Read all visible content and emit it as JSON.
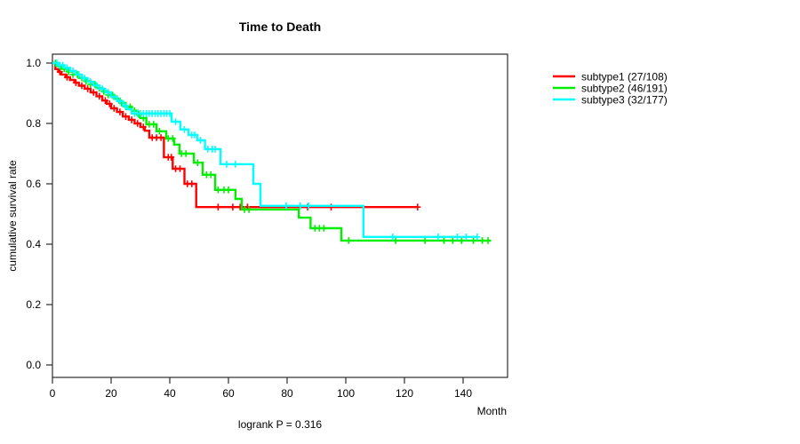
{
  "chart_data": {
    "type": "line",
    "subtype": "kaplan-meier-step",
    "title": "Time to Death",
    "xlabel": "Month",
    "ylabel": "cumulative survival rate",
    "annotation": "logrank P = 0.316",
    "legend_position": "right-outside",
    "grid": false,
    "xlim": [
      0,
      155
    ],
    "ylim": [
      0.0,
      1.03
    ],
    "xticks": [
      0,
      20,
      40,
      60,
      80,
      100,
      120,
      140
    ],
    "ytick_labels": [
      "0.0",
      "0.2",
      "0.4",
      "0.6",
      "0.8",
      "1.0"
    ],
    "series": [
      {
        "name": "subtype1 (27/108)",
        "color": "#ff0000",
        "end_time": 124.5,
        "steps": [
          [
            0,
            1.0
          ],
          [
            1,
            0.98
          ],
          [
            2,
            0.971
          ],
          [
            3,
            0.962
          ],
          [
            4.5,
            0.953
          ],
          [
            6,
            0.944
          ],
          [
            7.5,
            0.935
          ],
          [
            9,
            0.925
          ],
          [
            11,
            0.915
          ],
          [
            13,
            0.903
          ],
          [
            15,
            0.89
          ],
          [
            17,
            0.876
          ],
          [
            18.5,
            0.865
          ],
          [
            20,
            0.85
          ],
          [
            22,
            0.838
          ],
          [
            24,
            0.823
          ],
          [
            26,
            0.812
          ],
          [
            28,
            0.8
          ],
          [
            30,
            0.788
          ],
          [
            31.5,
            0.776
          ],
          [
            33,
            0.753
          ],
          [
            38,
            0.688
          ],
          [
            41,
            0.65
          ],
          [
            45,
            0.6
          ],
          [
            49,
            0.523
          ]
        ],
        "censors": [
          2.5,
          5,
          8,
          10,
          12,
          14,
          16,
          18,
          19.5,
          21,
          23,
          25,
          27,
          29,
          31,
          34,
          35.5,
          37,
          39.5,
          40.5,
          42,
          43.5,
          46,
          47.5,
          56.5,
          61.5,
          64,
          66.5,
          87,
          95,
          124.5
        ]
      },
      {
        "name": "subtype2 (46/191)",
        "color": "#00ee00",
        "end_time": 149.5,
        "steps": [
          [
            0,
            1.0
          ],
          [
            1.5,
            0.99
          ],
          [
            3,
            0.981
          ],
          [
            5,
            0.972
          ],
          [
            7,
            0.962
          ],
          [
            9,
            0.951
          ],
          [
            11,
            0.94
          ],
          [
            13,
            0.929
          ],
          [
            15,
            0.917
          ],
          [
            17,
            0.906
          ],
          [
            19,
            0.894
          ],
          [
            21,
            0.882
          ],
          [
            23,
            0.868
          ],
          [
            25,
            0.855
          ],
          [
            27,
            0.842
          ],
          [
            29,
            0.829
          ],
          [
            30,
            0.818
          ],
          [
            32,
            0.797
          ],
          [
            35.5,
            0.774
          ],
          [
            38.8,
            0.75
          ],
          [
            41.5,
            0.73
          ],
          [
            43.3,
            0.7
          ],
          [
            48.2,
            0.67
          ],
          [
            51.2,
            0.63
          ],
          [
            55.5,
            0.58
          ],
          [
            62.4,
            0.55
          ],
          [
            64.5,
            0.515
          ],
          [
            84,
            0.488
          ],
          [
            88,
            0.453
          ],
          [
            98.5,
            0.412
          ]
        ],
        "censors": [
          1,
          2.5,
          4,
          5.5,
          7,
          8.5,
          10,
          11.5,
          13,
          14.5,
          16,
          17.5,
          19,
          20.5,
          22,
          23.5,
          25,
          26.5,
          28,
          29.5,
          31,
          33,
          34.5,
          36.5,
          39.5,
          41,
          44,
          45.5,
          49.5,
          52.5,
          54,
          56.5,
          58.5,
          60,
          65.5,
          67,
          89.5,
          91,
          92.5,
          101,
          117,
          127,
          133.5,
          136.5,
          139.5,
          143.5,
          146.5,
          148.5
        ]
      },
      {
        "name": "subtype3 (32/177)",
        "color": "#00ffff",
        "end_time": 144.8,
        "steps": [
          [
            0,
            1.0
          ],
          [
            2,
            0.993
          ],
          [
            4,
            0.984
          ],
          [
            6,
            0.974
          ],
          [
            8,
            0.962
          ],
          [
            10,
            0.95
          ],
          [
            12,
            0.938
          ],
          [
            14,
            0.926
          ],
          [
            16,
            0.915
          ],
          [
            18,
            0.903
          ],
          [
            20,
            0.888
          ],
          [
            22,
            0.874
          ],
          [
            24,
            0.858
          ],
          [
            25.5,
            0.847
          ],
          [
            27,
            0.833
          ],
          [
            40.6,
            0.806
          ],
          [
            43.6,
            0.78
          ],
          [
            46.4,
            0.762
          ],
          [
            49.4,
            0.744
          ],
          [
            52,
            0.715
          ],
          [
            57.3,
            0.665
          ],
          [
            68.5,
            0.6
          ],
          [
            70.9,
            0.527
          ],
          [
            106,
            0.424
          ]
        ],
        "censors": [
          1.5,
          2.5,
          3.5,
          5,
          7,
          9,
          11,
          13,
          15,
          17,
          19,
          21,
          23,
          25,
          28,
          29,
          30,
          31,
          32,
          33,
          34,
          35,
          36,
          37,
          38,
          39,
          40,
          42,
          45,
          47.5,
          48.5,
          50.5,
          53,
          54.5,
          55.5,
          59.4,
          62.4,
          79.7,
          84.5,
          87.3,
          116,
          131.5,
          138,
          141,
          144.8
        ]
      }
    ]
  }
}
